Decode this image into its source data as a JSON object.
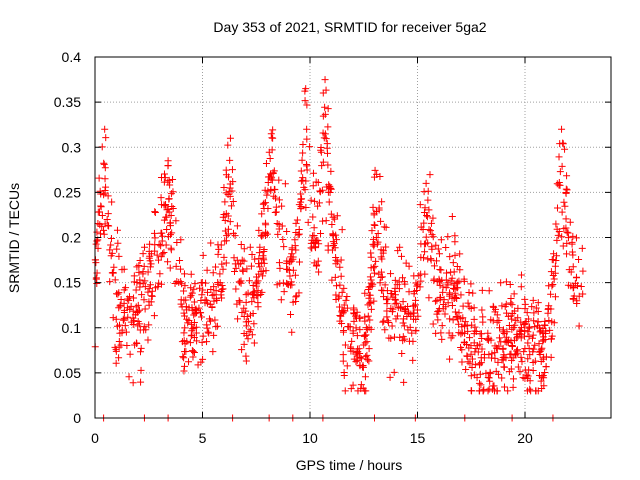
{
  "chart_data": {
    "type": "scatter",
    "title": "Day 353 of 2021, SRMTID for receiver 5ga2",
    "xlabel": "GPS time / hours",
    "ylabel": "SRMTID / TECUs",
    "xlim": [
      0,
      24
    ],
    "ylim": [
      0,
      0.4
    ],
    "x_ticks": [
      0,
      5,
      10,
      15,
      20
    ],
    "x_tick_labels": [
      "0",
      "5",
      "10",
      "15",
      "20"
    ],
    "y_ticks": [
      0,
      0.05,
      0.1,
      0.15,
      0.2,
      0.25,
      0.3,
      0.35,
      0.4
    ],
    "y_tick_labels": [
      "0",
      "0.05",
      "0.1",
      "0.15",
      "0.2",
      "0.25",
      "0.3",
      "0.35",
      "0.4"
    ],
    "grid": true,
    "marker": "+",
    "series": [
      {
        "name": "SRMTID",
        "color": "#ff0000",
        "approx_points": 1500,
        "value_range": [
          0.03,
          0.375
        ],
        "typical_value": 0.11,
        "peaks": [
          {
            "x": 0.45,
            "y": 0.32
          },
          {
            "x": 3.4,
            "y": 0.285
          },
          {
            "x": 6.3,
            "y": 0.31
          },
          {
            "x": 8.2,
            "y": 0.315
          },
          {
            "x": 9.8,
            "y": 0.365
          },
          {
            "x": 10.7,
            "y": 0.375
          },
          {
            "x": 13.1,
            "y": 0.27
          },
          {
            "x": 15.4,
            "y": 0.26
          },
          {
            "x": 21.7,
            "y": 0.32
          }
        ],
        "points": []
      }
    ],
    "zero_markers_x": [
      0.4,
      2.3,
      3.4,
      6.4,
      8.1,
      9.2,
      10.6,
      13.0,
      14.9,
      17.2,
      19.4,
      21.3
    ]
  }
}
